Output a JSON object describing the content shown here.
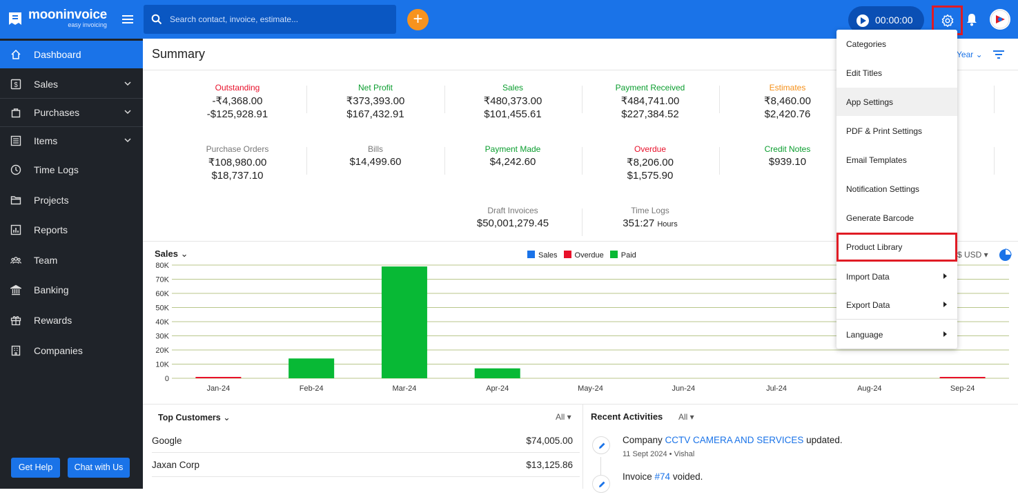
{
  "app": {
    "name": "mooninvoice",
    "tagline": "easy invoicing"
  },
  "search": {
    "placeholder": "Search contact, invoice, estimate..."
  },
  "timer": {
    "value": "00:00:00"
  },
  "sidebar": {
    "items": [
      {
        "label": "Dashboard",
        "icon": "home-icon"
      },
      {
        "label": "Sales",
        "icon": "dollar-icon"
      },
      {
        "label": "Purchases",
        "icon": "bag-icon"
      },
      {
        "label": "Items",
        "icon": "list-icon"
      },
      {
        "label": "Time Logs",
        "icon": "clock-icon"
      },
      {
        "label": "Projects",
        "icon": "folder-icon"
      },
      {
        "label": "Reports",
        "icon": "report-icon"
      },
      {
        "label": "Team",
        "icon": "team-icon"
      },
      {
        "label": "Banking",
        "icon": "bank-icon"
      },
      {
        "label": "Rewards",
        "icon": "gift-icon"
      },
      {
        "label": "Companies",
        "icon": "building-icon"
      }
    ],
    "get_help": "Get Help",
    "chat": "Chat with Us"
  },
  "summary": {
    "title": "Summary",
    "year_filter": "Year",
    "row1": [
      {
        "label": "Outstanding",
        "v1": "-₹4,368.00",
        "v2": "-$125,928.91"
      },
      {
        "label": "Net Profit",
        "v1": "₹373,393.00",
        "v2": "$167,432.91"
      },
      {
        "label": "Sales",
        "v1": "₹480,373.00",
        "v2": "$101,455.61"
      },
      {
        "label": "Payment Received",
        "v1": "₹484,741.00",
        "v2": "$227,384.52"
      },
      {
        "label": "Estimates",
        "v1": "₹8,460.00",
        "v2": "$2,420.76"
      }
    ],
    "row2": [
      {
        "label": "Purchase Orders",
        "v1": "₹108,980.00",
        "v2": "$18,737.10"
      },
      {
        "label": "Bills",
        "v1": "$14,499.60",
        "v2": ""
      },
      {
        "label": "Payment Made",
        "v1": "$4,242.60",
        "v2": ""
      },
      {
        "label": "Overdue",
        "v1": "₹8,206.00",
        "v2": "$1,575.90"
      },
      {
        "label": "Credit Notes",
        "v1": "$939.10",
        "v2": ""
      }
    ],
    "row3": [
      {
        "label": "Draft Invoices",
        "v1": "$50,001,279.45"
      },
      {
        "label": "Time Logs",
        "v1": "351:27",
        "unit": "Hours"
      }
    ]
  },
  "sales_chart": {
    "dropdown": "Sales",
    "currency": "$ USD",
    "legend": [
      "Sales",
      "Overdue",
      "Paid"
    ],
    "legend_colors": [
      "#1a73e8",
      "#e8102a",
      "#08b935"
    ]
  },
  "chart_data": {
    "type": "bar",
    "categories": [
      "Jan-24",
      "Feb-24",
      "Mar-24",
      "Apr-24",
      "May-24",
      "Jun-24",
      "Jul-24",
      "Aug-24",
      "Sep-24"
    ],
    "series": [
      {
        "name": "Sales",
        "values": [
          0,
          0,
          0,
          0,
          0,
          0,
          0,
          0,
          0
        ]
      },
      {
        "name": "Overdue",
        "values": [
          300,
          0,
          0,
          0,
          0,
          0,
          0,
          0,
          300
        ]
      },
      {
        "name": "Paid",
        "values": [
          0,
          14000,
          79000,
          7000,
          0,
          0,
          0,
          0,
          0
        ]
      }
    ],
    "yticks": [
      "80K",
      "70K",
      "60K",
      "50K",
      "40K",
      "30K",
      "20K",
      "10K",
      "0"
    ],
    "ylim": [
      0,
      80000
    ],
    "grid": true,
    "legend_position": "top"
  },
  "top_customers": {
    "title": "Top Customers",
    "filter": "All",
    "rows": [
      {
        "name": "Google",
        "amount": "$74,005.00"
      },
      {
        "name": "Jaxan Corp",
        "amount": "$13,125.86"
      }
    ]
  },
  "recent_activities": {
    "title": "Recent Activities",
    "filter": "All",
    "items": [
      {
        "pre": "Company ",
        "link": "CCTV CAMERA AND SERVICES",
        "post": " updated.",
        "meta": "11 Sept 2024 • Vishal"
      },
      {
        "pre": "Invoice ",
        "link": "#74",
        "post": " voided."
      }
    ]
  },
  "settings_menu": {
    "items": [
      "Categories",
      "Edit Titles",
      "App Settings",
      "PDF & Print Settings",
      "Email Templates",
      "Notification Settings",
      "Generate Barcode",
      "Product Library",
      "Import Data",
      "Export Data",
      "Language"
    ]
  }
}
